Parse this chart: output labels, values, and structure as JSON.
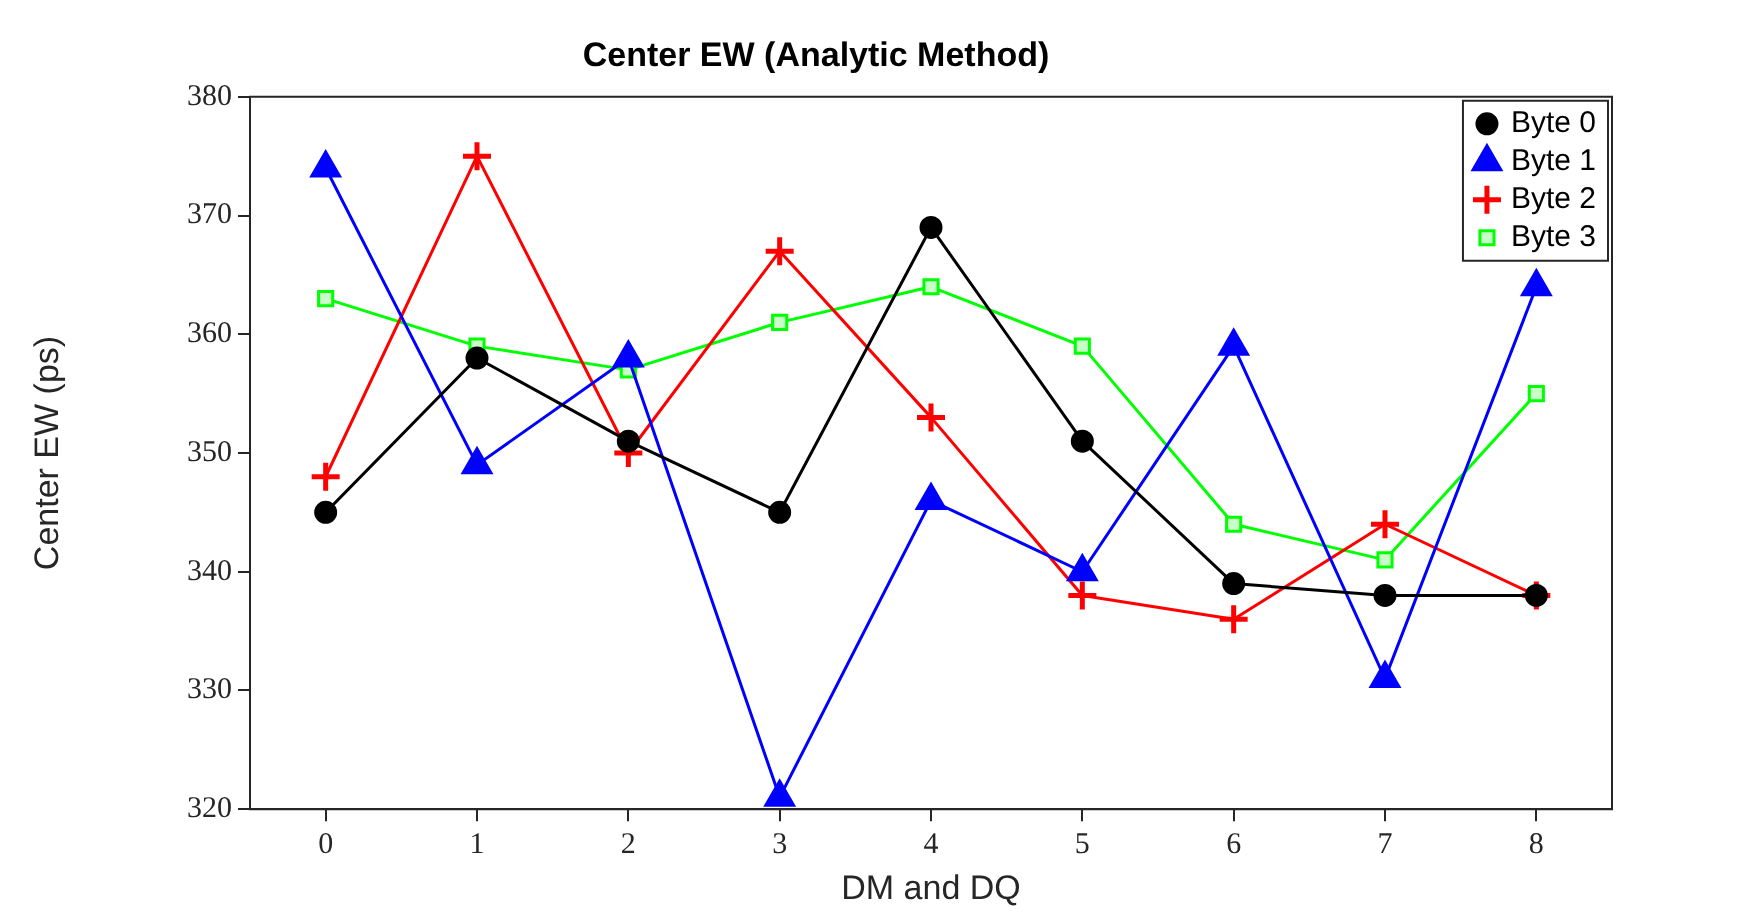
{
  "chart_data": {
    "type": "line",
    "title": "Center EW (Analytic Method)",
    "xlabel": "DM and DQ",
    "ylabel": "Center EW (ps)",
    "x": [
      0,
      1,
      2,
      3,
      4,
      5,
      6,
      7,
      8
    ],
    "xlim": [
      -0.5,
      8.5
    ],
    "xticks": [
      0,
      1,
      2,
      3,
      4,
      5,
      6,
      7,
      8
    ],
    "ylim": [
      320,
      380
    ],
    "yticks": [
      320,
      330,
      340,
      350,
      360,
      370,
      380
    ],
    "grid": false,
    "legend": "top right",
    "line_style": "solid",
    "series": [
      {
        "name": "Byte 0",
        "color": "#000000",
        "marker": "circle",
        "values": [
          345,
          358,
          351,
          345,
          369,
          351,
          339,
          338,
          338
        ]
      },
      {
        "name": "Byte 1",
        "color": "#0000ff",
        "marker": "triangle",
        "values": [
          374,
          349,
          358,
          321,
          346,
          340,
          359,
          331,
          364
        ]
      },
      {
        "name": "Byte 2",
        "color": "#ff0000",
        "marker": "cross",
        "values": [
          348,
          375,
          350,
          367,
          353,
          338,
          336,
          344,
          338
        ]
      },
      {
        "name": "Byte 3",
        "color": "#00ff00",
        "marker": "square",
        "values": [
          363,
          359,
          357,
          361,
          364,
          359,
          344,
          341,
          355
        ]
      }
    ]
  }
}
